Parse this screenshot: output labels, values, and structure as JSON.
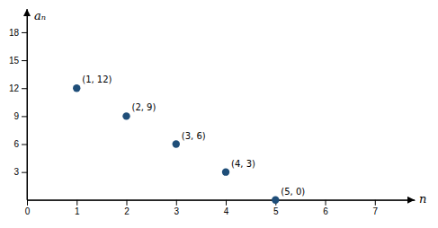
{
  "chart_data": {
    "type": "scatter",
    "x": [
      1,
      2,
      3,
      4,
      5
    ],
    "values": [
      12,
      9,
      6,
      3,
      0
    ],
    "color": "#1f4e79",
    "data_labels": true,
    "value_labels": [
      "(1, 12)",
      "(2, 9)",
      "(3, 6)",
      "(4, 3)",
      "(5, 0)"
    ],
    "xlabel": "n",
    "ylabel": "aₙ",
    "xlim": [
      0,
      7.8
    ],
    "ylim": [
      -0.5,
      20.5
    ],
    "xticks": [
      0,
      1,
      2,
      3,
      4,
      5,
      6,
      7
    ],
    "yticks": [
      3,
      6,
      9,
      12,
      15,
      18
    ]
  }
}
